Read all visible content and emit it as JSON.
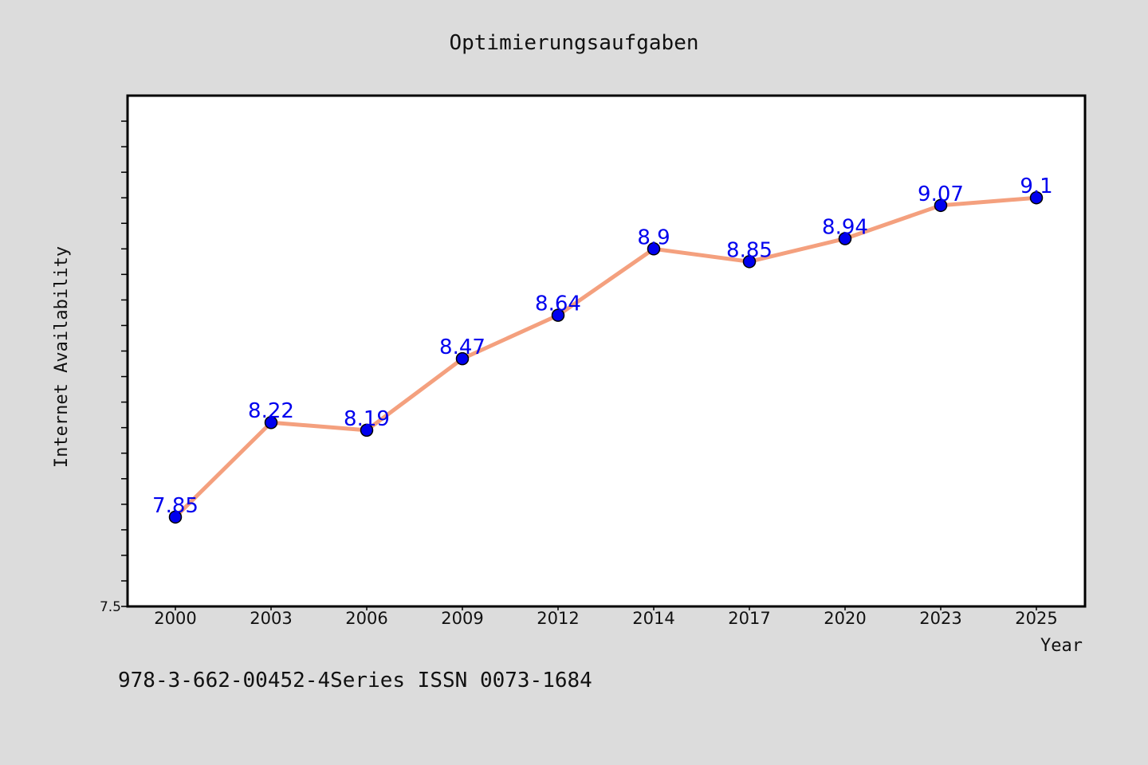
{
  "chart_data": {
    "type": "line",
    "title": "Optimierungsaufgaben",
    "xlabel": "Year",
    "ylabel": "Internet Availability",
    "categories": [
      "2000",
      "2003",
      "2006",
      "2009",
      "2012",
      "2014",
      "2017",
      "2020",
      "2023",
      "2025"
    ],
    "series": [
      {
        "values": [
          7.85,
          8.22,
          8.19,
          8.47,
          8.64,
          8.9,
          8.85,
          8.94,
          9.07,
          9.1
        ]
      }
    ],
    "data_labels": [
      "7.85",
      "8.22",
      "8.19",
      "8.47",
      "8.64",
      "8.9",
      "8.85",
      "8.94",
      "9.07",
      "9.1"
    ],
    "ylim": [
      7.5,
      9.5
    ],
    "y_tick_labels": [
      "7.5"
    ],
    "y_minor_tick_step": 0.1,
    "grid": false,
    "legend": "none",
    "colors": {
      "background": "#dcdcdc",
      "plot_background": "#ffffff",
      "line": "#f4a07e",
      "marker": "#0000ee",
      "data_label": "#0000ee"
    }
  },
  "footer": {
    "text": "978-3-662-00452-4Series ISSN 0073-1684"
  }
}
